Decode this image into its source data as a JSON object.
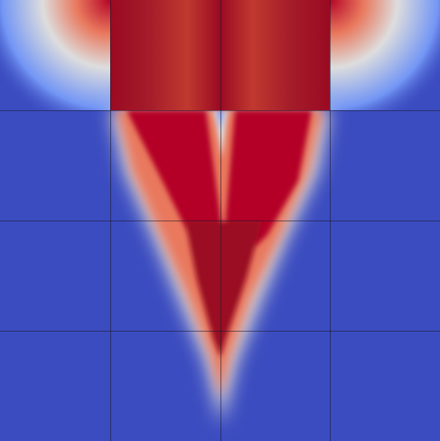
{
  "render": {
    "colormap": {
      "low": "#3b4cc0",
      "mid": "#dddddd",
      "high": "#b40426",
      "saturated_high": "#9a0a22"
    },
    "background": "#3b4cc0",
    "grid": {
      "rows": 4,
      "cols": 4,
      "line_color": "#1a1a2e"
    },
    "field_description_visible_labels": []
  }
}
